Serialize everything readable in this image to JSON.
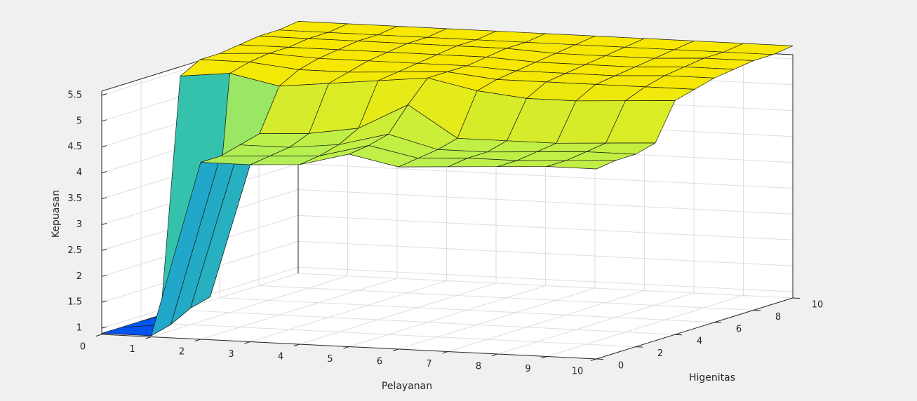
{
  "chart_data": {
    "type": "surface",
    "xlabel": "Pelayanan",
    "ylabel": "Higenitas",
    "zlabel": "Kepuasan",
    "x": [
      0,
      1,
      2,
      3,
      4,
      5,
      6,
      7,
      8,
      9,
      10
    ],
    "y": [
      0,
      1,
      2,
      3,
      4,
      5,
      6,
      7,
      8,
      9,
      10
    ],
    "z": [
      [
        0.9,
        0.9,
        4.3,
        4.3,
        4.35,
        4.6,
        4.4,
        4.45,
        4.5,
        4.55,
        4.55
      ],
      [
        0.9,
        1.0,
        4.3,
        4.35,
        4.4,
        4.65,
        4.45,
        4.5,
        4.5,
        4.55,
        4.6
      ],
      [
        0.9,
        1.2,
        4.4,
        4.4,
        4.5,
        4.75,
        4.5,
        4.5,
        4.55,
        4.6,
        4.6
      ],
      [
        0.9,
        1.3,
        4.5,
        4.55,
        4.7,
        5.2,
        4.6,
        4.6,
        4.6,
        4.65,
        4.7
      ],
      [
        5.4,
        5.5,
        5.3,
        5.4,
        5.5,
        5.6,
        5.4,
        5.3,
        5.3,
        5.35,
        5.4
      ],
      [
        5.6,
        5.6,
        5.5,
        5.5,
        5.55,
        5.6,
        5.5,
        5.5,
        5.5,
        5.5,
        5.5
      ],
      [
        5.6,
        5.65,
        5.6,
        5.6,
        5.6,
        5.6,
        5.55,
        5.55,
        5.55,
        5.6,
        5.6
      ],
      [
        5.65,
        5.65,
        5.65,
        5.65,
        5.65,
        5.65,
        5.6,
        5.6,
        5.6,
        5.65,
        5.65
      ],
      [
        5.7,
        5.7,
        5.7,
        5.7,
        5.7,
        5.7,
        5.65,
        5.65,
        5.65,
        5.7,
        5.7
      ],
      [
        5.7,
        5.7,
        5.7,
        5.7,
        5.7,
        5.7,
        5.7,
        5.7,
        5.7,
        5.7,
        5.7
      ],
      [
        5.75,
        5.75,
        5.75,
        5.75,
        5.75,
        5.75,
        5.75,
        5.75,
        5.75,
        5.75,
        5.75
      ]
    ],
    "xlim": [
      0,
      10
    ],
    "ylim": [
      0,
      10
    ],
    "zlim": [
      0.88,
      5.58
    ],
    "xticks": [
      0,
      1,
      2,
      3,
      4,
      5,
      6,
      7,
      8,
      9,
      10
    ],
    "yticks": [
      0,
      2,
      4,
      6,
      8,
      10
    ],
    "zticks": [
      1,
      1.5,
      2,
      2.5,
      3,
      3.5,
      4,
      4.5,
      5,
      5.5
    ],
    "grid": true,
    "colormap": [
      "#0050f0",
      "#1090e0",
      "#30c0b0",
      "#b8f050",
      "#f8e800"
    ]
  }
}
